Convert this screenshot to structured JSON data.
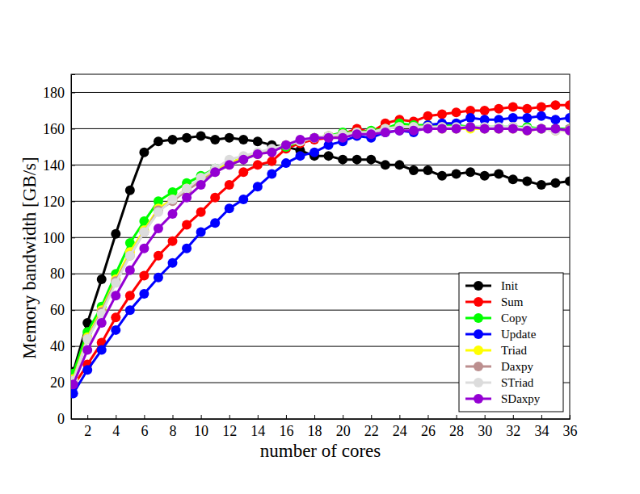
{
  "chart_data": {
    "type": "line",
    "x_label": "number of cores",
    "y_label": "Memory bandwidth [GB/s]",
    "x": [
      1,
      2,
      3,
      4,
      5,
      6,
      7,
      8,
      9,
      10,
      11,
      12,
      13,
      14,
      15,
      16,
      17,
      18,
      19,
      20,
      21,
      22,
      23,
      24,
      25,
      26,
      27,
      28,
      29,
      30,
      31,
      32,
      33,
      34,
      35,
      36
    ],
    "xlim": [
      0.85,
      36
    ],
    "xticks": [
      2,
      4,
      6,
      8,
      10,
      12,
      14,
      16,
      18,
      20,
      22,
      24,
      26,
      28,
      30,
      32,
      34,
      36
    ],
    "ylim": [
      0,
      190
    ],
    "yticks": [
      0,
      20,
      40,
      60,
      80,
      100,
      120,
      140,
      160,
      180
    ],
    "grid": true,
    "legend": "lower right",
    "marker": "circle",
    "series": [
      {
        "name": "Init",
        "color": "#000000",
        "values": [
          26,
          53,
          77,
          102,
          126,
          147,
          153,
          154,
          155,
          156,
          154,
          155,
          154,
          153,
          151,
          150,
          148,
          145,
          145,
          143,
          143,
          143,
          140,
          140,
          137,
          137,
          134,
          135,
          136,
          134,
          135,
          132,
          131,
          129,
          130,
          131
        ]
      },
      {
        "name": "Sum",
        "color": "#ff0000",
        "values": [
          18,
          30,
          42,
          56,
          68,
          79,
          90,
          98,
          107,
          114,
          122,
          129,
          136,
          140,
          142,
          149,
          152,
          154,
          155,
          157,
          160,
          158,
          163,
          165,
          164,
          167,
          168,
          169,
          170,
          170,
          171,
          172,
          171,
          172,
          173,
          173
        ]
      },
      {
        "name": "Copy",
        "color": "#00ff00",
        "values": [
          25,
          48,
          62,
          80,
          97,
          109,
          120,
          125,
          130,
          134,
          138,
          141,
          144,
          146,
          148,
          150,
          153,
          155,
          156,
          158,
          158,
          159,
          160,
          163,
          162,
          162,
          162,
          162,
          161,
          161,
          161,
          161,
          161,
          160,
          160,
          160
        ]
      },
      {
        "name": "Update",
        "color": "#0000ff",
        "values": [
          14,
          27,
          38,
          49,
          60,
          69,
          78,
          86,
          94,
          103,
          108,
          116,
          121,
          128,
          135,
          141,
          145,
          147,
          151,
          153,
          156,
          155,
          158,
          159,
          158,
          162,
          163,
          163,
          166,
          165,
          165,
          166,
          166,
          167,
          165,
          166
        ]
      },
      {
        "name": "Triad",
        "color": "#ffff00",
        "values": [
          22,
          45,
          60,
          77,
          92,
          104,
          116,
          121,
          127,
          132,
          137,
          141,
          144,
          146,
          148,
          151,
          153,
          155,
          156,
          157,
          158,
          158,
          160,
          161,
          161,
          161,
          160,
          160,
          160,
          160,
          160,
          160,
          159,
          160,
          159,
          159
        ]
      },
      {
        "name": "Daxpy",
        "color": "#bc8f8f",
        "values": [
          21,
          44,
          59,
          76,
          90,
          103,
          115,
          120,
          126,
          131,
          136,
          140,
          143,
          146,
          148,
          151,
          153,
          155,
          156,
          157,
          158,
          158,
          160,
          161,
          161,
          161,
          161,
          160,
          161,
          160,
          160,
          161,
          160,
          160,
          159,
          160
        ]
      },
      {
        "name": "STriad",
        "color": "#dcdcdc",
        "values": [
          21,
          44,
          58,
          75,
          90,
          103,
          114,
          121,
          127,
          133,
          138,
          143,
          145,
          147,
          149,
          151,
          153,
          155,
          156,
          157,
          158,
          158,
          160,
          161,
          161,
          161,
          161,
          161,
          161,
          161,
          161,
          161,
          160,
          160,
          159,
          159
        ]
      },
      {
        "name": "SDaxpy",
        "color": "#9400d3",
        "values": [
          19,
          38,
          53,
          68,
          82,
          94,
          105,
          113,
          122,
          129,
          136,
          140,
          143,
          146,
          147,
          151,
          154,
          155,
          155,
          155,
          157,
          157,
          158,
          159,
          159,
          160,
          160,
          160,
          161,
          160,
          160,
          160,
          159,
          160,
          160,
          159
        ]
      }
    ]
  }
}
